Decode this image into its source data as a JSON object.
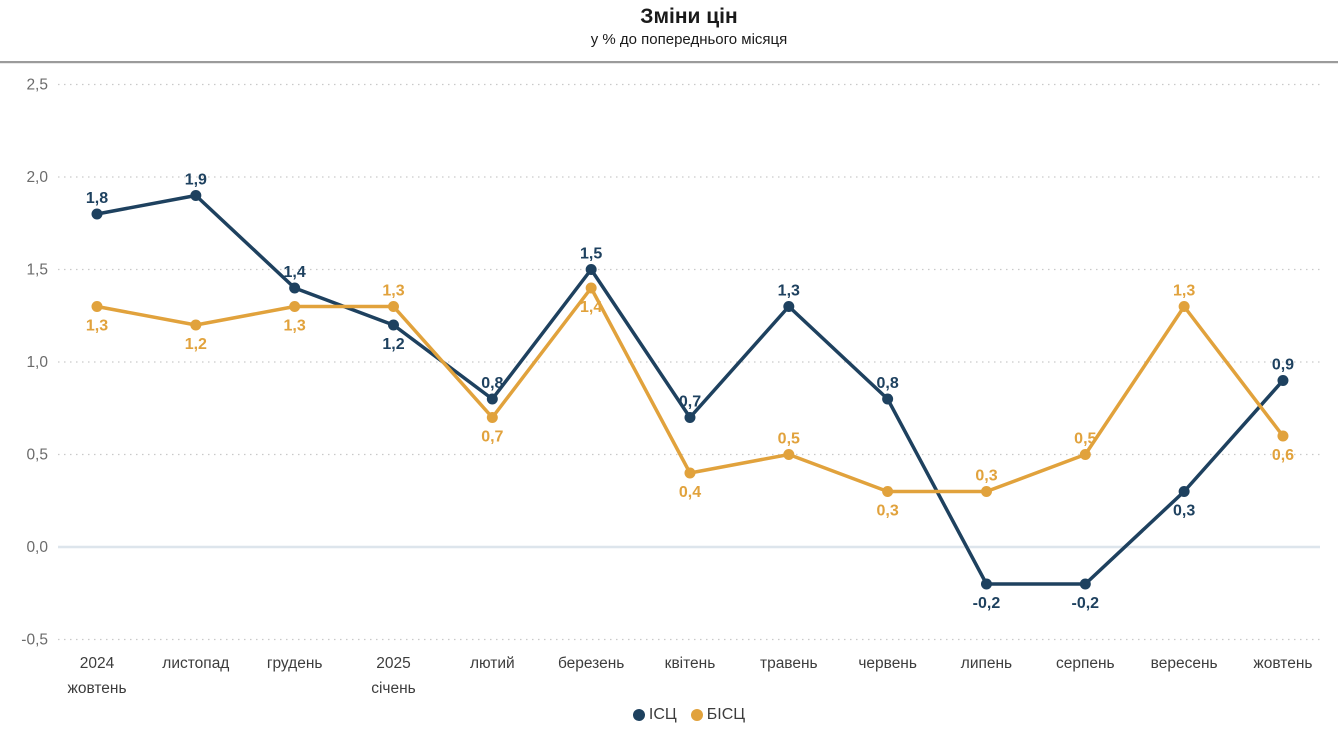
{
  "chart_data": {
    "type": "line",
    "title": "Зміни цін",
    "subtitle": "у % до попереднього місяця",
    "categories": [
      [
        "2024",
        "жовтень"
      ],
      [
        "листопад"
      ],
      [
        "грудень"
      ],
      [
        "2025",
        "січень"
      ],
      [
        "лютий"
      ],
      [
        "березень"
      ],
      [
        "квітень"
      ],
      [
        "травень"
      ],
      [
        "червень"
      ],
      [
        "липень"
      ],
      [
        "серпень"
      ],
      [
        "вересень"
      ],
      [
        "жовтень"
      ]
    ],
    "ylim": [
      -0.5,
      2.5
    ],
    "y_ticks": {
      "values": [
        2.5,
        2.0,
        1.5,
        1.0,
        0.5,
        0.0,
        -0.5
      ],
      "labels": [
        "2,5",
        "2,0",
        "1,5",
        "1,0",
        "0,5",
        "0,0",
        "-0,5"
      ]
    },
    "grid": "horizontal dotted lines, solid light line at zero",
    "legend_position": "bottom center",
    "series": [
      {
        "name": "ІСЦ",
        "color": "#1e415f",
        "values": [
          1.8,
          1.9,
          1.4,
          1.2,
          0.8,
          1.5,
          0.7,
          1.3,
          0.8,
          -0.2,
          -0.2,
          0.3,
          0.9
        ],
        "labels": [
          "1,8",
          "1,9",
          "1,4",
          "1,2",
          "0,8",
          "1,5",
          "0,7",
          "1,3",
          "0,8",
          "-0,2",
          "-0,2",
          "0,3",
          "0,9"
        ],
        "label_pos": [
          "above",
          "above",
          "above",
          "below",
          "above",
          "above",
          "above",
          "above",
          "above",
          "below",
          "below",
          "below",
          "above"
        ],
        "last_label_bold": true
      },
      {
        "name": "БІСЦ",
        "color": "#e1a23c",
        "values": [
          1.3,
          1.2,
          1.3,
          1.3,
          0.7,
          1.4,
          0.4,
          0.5,
          0.3,
          0.3,
          0.5,
          1.3,
          0.6
        ],
        "labels": [
          "1,3",
          "1,2",
          "1,3",
          "1,3",
          "0,7",
          "1,4",
          "0,4",
          "0,5",
          "0,3",
          "0,3",
          "0,5",
          "1,3",
          "0,6"
        ],
        "label_pos": [
          "below",
          "below",
          "below",
          "above",
          "below",
          "below",
          "below",
          "above",
          "below",
          "above",
          "above",
          "above",
          "below"
        ],
        "last_label_bold": true
      }
    ],
    "colors": {
      "grid_dotted": "#c9c9c9",
      "zero_line": "#dde5ec",
      "y_tick_text": "#6b6b6b",
      "x_tick_text": "#3d3d3d",
      "legend_text": "#3d3d3d"
    }
  }
}
